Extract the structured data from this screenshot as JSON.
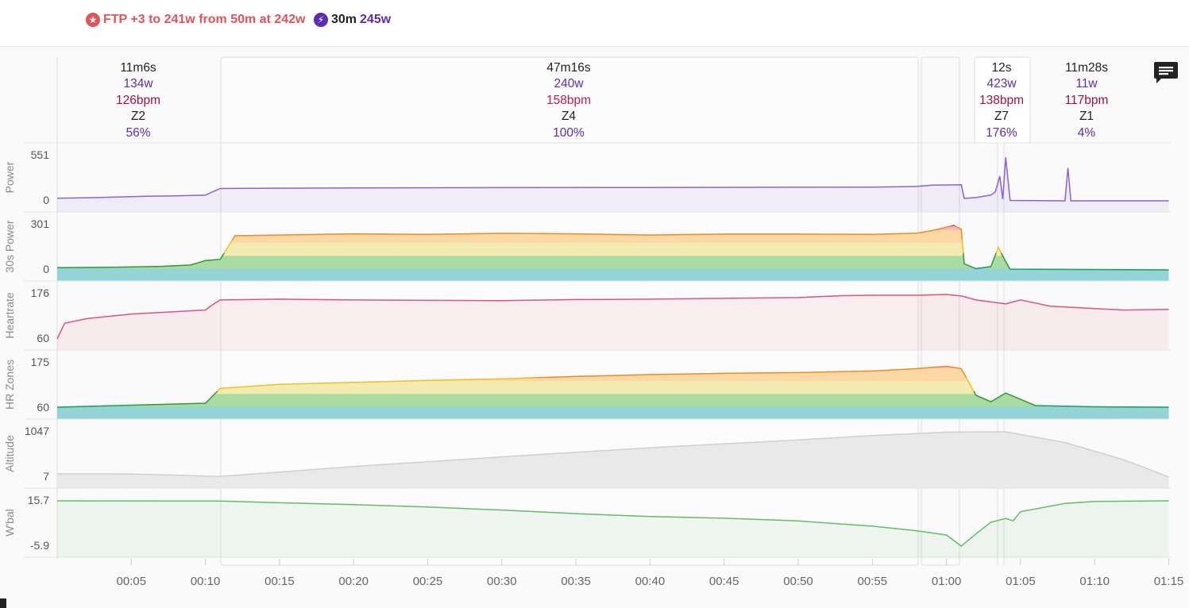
{
  "header": {
    "ftp_text": "FTP +3 to 241w from 50m at 242w",
    "best_label": "30m",
    "best_value": "245w",
    "icons": [
      "star-icon",
      "bolt-icon"
    ],
    "colors": {
      "ftp": "#e0545c",
      "best": "#5b2db0"
    }
  },
  "intervals": [
    {
      "duration": "11m6s",
      "power": "134w",
      "hr": "126bpm",
      "zone": "Z2",
      "pct": "56%"
    },
    {
      "duration": "47m16s",
      "power": "240w",
      "hr": "158bpm",
      "zone": "Z4",
      "pct": "100%"
    },
    {
      "duration": "12s",
      "power": "423w",
      "hr": "138bpm",
      "zone": "Z7",
      "pct": "176%"
    },
    {
      "duration": "11m28s",
      "power": "11w",
      "hr": "117bpm",
      "zone": "Z1",
      "pct": "4%"
    }
  ],
  "comment_icon": "comment-icon",
  "chart_data": {
    "type": "line",
    "x_unit": "elapsed time (h:mm)",
    "x_range": [
      "00:00",
      "01:15"
    ],
    "x_ticks": [
      "00:05",
      "00:10",
      "00:15",
      "00:20",
      "00:25",
      "00:30",
      "00:35",
      "00:40",
      "00:45",
      "00:50",
      "00:55",
      "01:00",
      "01:05",
      "01:10",
      "01:15"
    ],
    "panels": [
      {
        "ylabel": "Power",
        "ymin_label": "0",
        "ymax_label": "551",
        "color": "#8a63d2",
        "points": [
          [
            0,
            32
          ],
          [
            2,
            38
          ],
          [
            4,
            45
          ],
          [
            6,
            56
          ],
          [
            8,
            60
          ],
          [
            10,
            70
          ],
          [
            11,
            150
          ],
          [
            13,
            152
          ],
          [
            20,
            158
          ],
          [
            30,
            160
          ],
          [
            40,
            162
          ],
          [
            50,
            165
          ],
          [
            55,
            166
          ],
          [
            58,
            175
          ],
          [
            59,
            190
          ],
          [
            61,
            195
          ],
          [
            61.2,
            30
          ],
          [
            62,
            40
          ],
          [
            63,
            70
          ],
          [
            63.3,
            110
          ],
          [
            63.6,
            300
          ],
          [
            63.8,
            20
          ],
          [
            64,
            530
          ],
          [
            64.3,
            5
          ],
          [
            68,
            0
          ],
          [
            68.2,
            400
          ],
          [
            68.4,
            0
          ],
          [
            75,
            0
          ]
        ]
      },
      {
        "ylabel": "30s Power",
        "ymin_label": "0",
        "ymax_label": "301",
        "zoned": true,
        "points": [
          [
            0,
            14
          ],
          [
            4,
            18
          ],
          [
            7,
            23
          ],
          [
            9,
            32
          ],
          [
            10,
            62
          ],
          [
            11,
            70
          ],
          [
            12,
            227
          ],
          [
            15,
            232
          ],
          [
            20,
            240
          ],
          [
            25,
            236
          ],
          [
            30,
            243
          ],
          [
            35,
            240
          ],
          [
            40,
            232
          ],
          [
            45,
            238
          ],
          [
            50,
            238
          ],
          [
            55,
            236
          ],
          [
            58,
            244
          ],
          [
            59,
            261
          ],
          [
            60.5,
            295
          ],
          [
            61,
            270
          ],
          [
            61.2,
            40
          ],
          [
            62,
            8
          ],
          [
            63,
            22
          ],
          [
            63.5,
            150
          ],
          [
            64,
            55
          ],
          [
            64.3,
            5
          ],
          [
            75,
            0
          ]
        ]
      },
      {
        "ylabel": "Heartrate",
        "ymin_label": "60",
        "ymax_label": "176",
        "color": "#d9567e",
        "points": [
          [
            0,
            60
          ],
          [
            0.5,
            100
          ],
          [
            2,
            112
          ],
          [
            5,
            124
          ],
          [
            8,
            130
          ],
          [
            10,
            134
          ],
          [
            10.5,
            148
          ],
          [
            11,
            160
          ],
          [
            15,
            162
          ],
          [
            20,
            160
          ],
          [
            25,
            159
          ],
          [
            30,
            158
          ],
          [
            35,
            161
          ],
          [
            40,
            162
          ],
          [
            45,
            164
          ],
          [
            50,
            166
          ],
          [
            53,
            171
          ],
          [
            55,
            172
          ],
          [
            58,
            172
          ],
          [
            60,
            174
          ],
          [
            61,
            170
          ],
          [
            62,
            160
          ],
          [
            64,
            150
          ],
          [
            65,
            160
          ],
          [
            67,
            144
          ],
          [
            70,
            138
          ],
          [
            72,
            134
          ],
          [
            75,
            136
          ]
        ]
      },
      {
        "ylabel": "HR Zones",
        "ymin_label": "60",
        "ymax_label": "175",
        "zoned": true,
        "points": [
          [
            0,
            62
          ],
          [
            2,
            64
          ],
          [
            5,
            67
          ],
          [
            8,
            70
          ],
          [
            10,
            72
          ],
          [
            11,
            110
          ],
          [
            15,
            120
          ],
          [
            20,
            125
          ],
          [
            25,
            130
          ],
          [
            30,
            134
          ],
          [
            35,
            140
          ],
          [
            40,
            145
          ],
          [
            45,
            148
          ],
          [
            50,
            150
          ],
          [
            55,
            154
          ],
          [
            58,
            160
          ],
          [
            60,
            166
          ],
          [
            61,
            160
          ],
          [
            62,
            92
          ],
          [
            63,
            76
          ],
          [
            64,
            98
          ],
          [
            65,
            82
          ],
          [
            66,
            66
          ],
          [
            70,
            63
          ],
          [
            75,
            62
          ]
        ]
      },
      {
        "ylabel": "Altitude",
        "ymin_label": "7",
        "ymax_label": "1047",
        "color": "#cfcfcf",
        "points": [
          [
            0,
            80
          ],
          [
            5,
            78
          ],
          [
            8,
            50
          ],
          [
            10,
            30
          ],
          [
            11,
            20
          ],
          [
            20,
            250
          ],
          [
            30,
            470
          ],
          [
            40,
            680
          ],
          [
            50,
            860
          ],
          [
            55,
            960
          ],
          [
            60,
            1040
          ],
          [
            64,
            1047
          ],
          [
            68,
            800
          ],
          [
            72,
            400
          ],
          [
            75,
            10
          ]
        ]
      },
      {
        "ylabel": "W'bal",
        "ymin_label": "-5.9",
        "ymax_label": "15.7",
        "color": "#66bb6a",
        "points": [
          [
            0,
            15.7
          ],
          [
            11,
            15.6
          ],
          [
            15,
            14.8
          ],
          [
            20,
            13.9
          ],
          [
            25,
            12.8
          ],
          [
            30,
            11.3
          ],
          [
            35,
            9.6
          ],
          [
            40,
            8.2
          ],
          [
            45,
            7.4
          ],
          [
            50,
            6.1
          ],
          [
            55,
            3.6
          ],
          [
            58,
            1.4
          ],
          [
            60,
            -0.6
          ],
          [
            61,
            -5.9
          ],
          [
            62,
            0
          ],
          [
            63,
            5.5
          ],
          [
            64,
            7.3
          ],
          [
            64.5,
            6.2
          ],
          [
            65,
            10.5
          ],
          [
            68,
            14.5
          ],
          [
            70,
            15.4
          ],
          [
            75,
            15.7
          ]
        ]
      }
    ],
    "zone_colors": [
      "#94d3d6",
      "#a9dba2",
      "#f2ecb3",
      "#fcd8a5",
      "#f5b9c3"
    ],
    "zone_line_colors": [
      "#10a060",
      "#2e9b2e",
      "#f0c020",
      "#f08a20",
      "#d01050"
    ]
  }
}
